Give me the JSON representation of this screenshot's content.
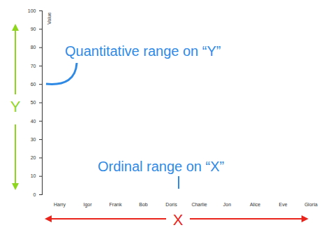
{
  "chart_data": {
    "type": "bar",
    "categories": [
      "Harry",
      "Igor",
      "Frank",
      "Bob",
      "Doris",
      "Charlie",
      "Jon",
      "Alice",
      "Eve",
      "Gloria"
    ],
    "values": [
      0,
      0,
      0,
      0,
      0,
      0,
      0,
      0,
      0,
      0
    ],
    "color": "#9ebfe0",
    "ylabel": "Value",
    "ylim": [
      0,
      100
    ],
    "yticks": [
      0,
      10,
      20,
      30,
      40,
      50,
      60,
      70,
      80,
      90,
      100
    ],
    "grid": false,
    "annotations": [
      "Quantitative range on “Y”",
      "Ordinal range on “X”",
      "Y",
      "X"
    ]
  }
}
